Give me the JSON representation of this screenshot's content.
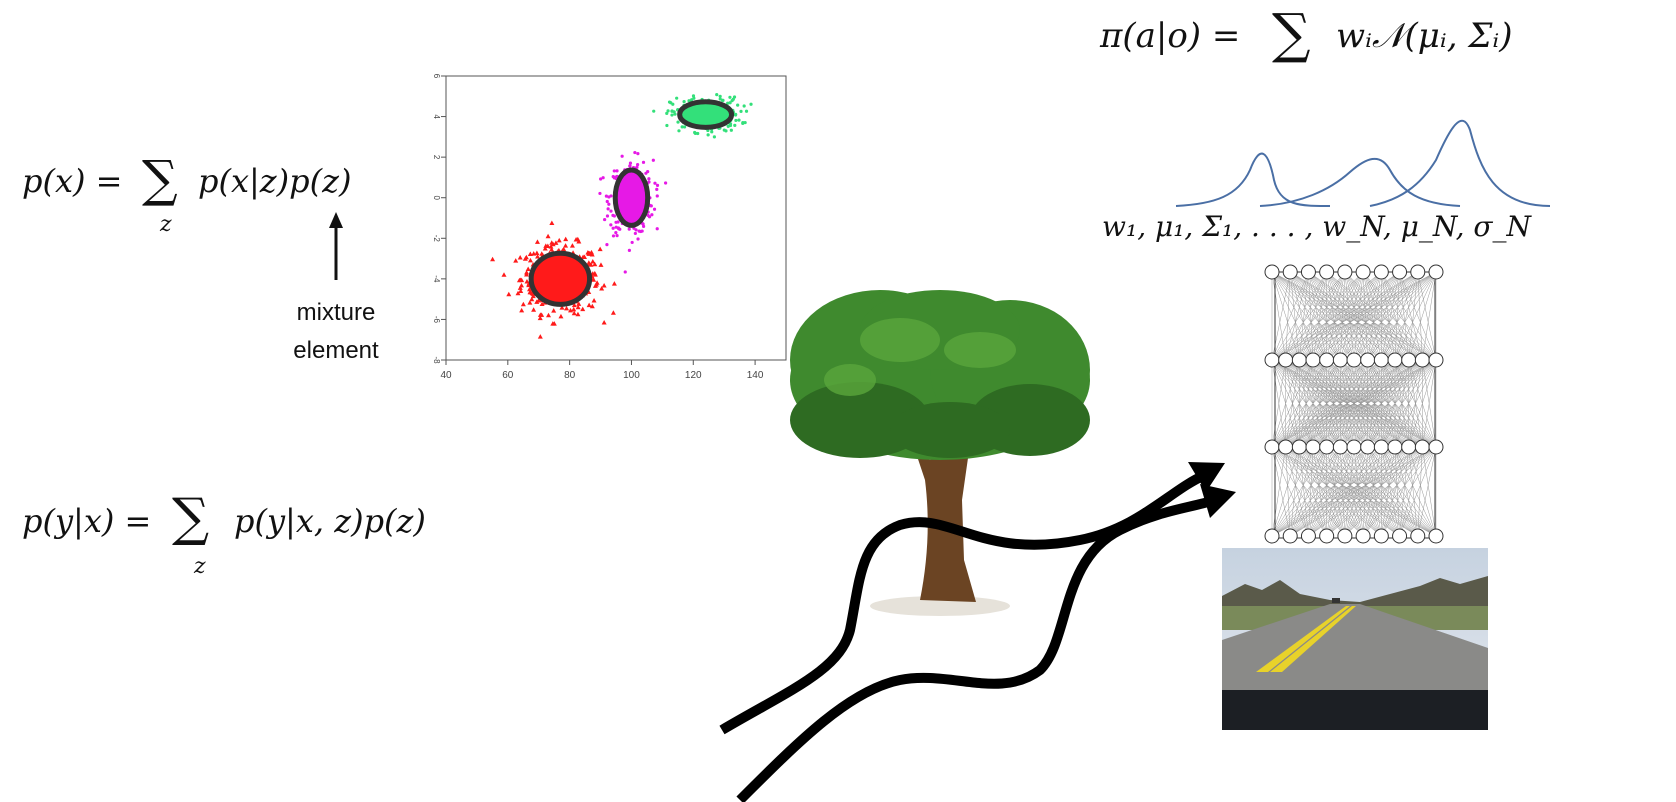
{
  "equations": {
    "mixture_marginal": {
      "lhs": "p(x) =",
      "sum": "∑",
      "sum_index": "z",
      "rhs": "p(x|z)p(z)"
    },
    "mixture_conditional": {
      "lhs": "p(y|x) =",
      "sum": "∑",
      "sum_index": "z",
      "rhs": "p(y|x, z)p(z)"
    },
    "policy": {
      "lhs": "π(a|o) =",
      "sum": "∑",
      "rhs": "wᵢ𝒩(μᵢ, Σᵢ)"
    },
    "parameters": "w₁, μ₁, Σ₁, . . . , w_N, μ_N, σ_N"
  },
  "annotation": {
    "line1": "mixture",
    "line2": "element"
  },
  "colors": {
    "cluster_red": "#ff1a1a",
    "cluster_magenta": "#e619e6",
    "cluster_green": "#33e07a",
    "ellipse_outline": "#333333",
    "gaussian_curve": "#4a6fa5",
    "tree_foliage": "#3f8a2e",
    "tree_trunk": "#6b4423",
    "road_sky": "#cfd8e3",
    "road_asphalt": "#8a8a88",
    "road_marking": "#e8d22a"
  },
  "chart_data": {
    "type": "scatter",
    "xlim": [
      40,
      150
    ],
    "ylim": [
      -8,
      6
    ],
    "x_ticks": [
      "40",
      "60",
      "80",
      "100",
      "120",
      "140"
    ],
    "y_ticks": [
      "6",
      "4",
      "2",
      "0",
      "-2",
      "-4",
      "-6",
      "-8"
    ],
    "clusters": [
      {
        "center": [
          77,
          -4.0
        ],
        "spread": [
          9,
          1.2
        ],
        "color": "#ff1a1a",
        "marker": "triangle"
      },
      {
        "center": [
          100,
          0.0
        ],
        "spread": [
          5,
          1.3
        ],
        "color": "#e619e6",
        "marker": "dot"
      },
      {
        "center": [
          124,
          4.1
        ],
        "spread": [
          8,
          0.6
        ],
        "color": "#33e07a",
        "marker": "dot"
      }
    ]
  },
  "icons": [
    "up-arrow-icon",
    "tree-icon",
    "trajectory-arrows-icon",
    "neural-network-icon",
    "road-photo"
  ]
}
